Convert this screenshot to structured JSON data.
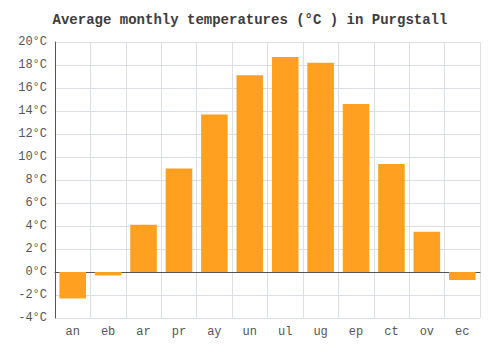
{
  "chart_data": {
    "type": "bar",
    "title": "Average monthly temperatures (°C ) in Purgstall",
    "categories": [
      "an",
      "eb",
      "ar",
      "pr",
      "ay",
      "un",
      "ul",
      "ug",
      "ep",
      "ct",
      "ov",
      "ec"
    ],
    "values": [
      -2.3,
      -0.3,
      4.1,
      9.0,
      13.7,
      17.1,
      18.7,
      18.2,
      14.6,
      9.4,
      3.5,
      -0.7
    ],
    "color": "#FFA020",
    "ylim": [
      -4,
      20
    ],
    "yticks": [
      {
        "value": -4,
        "label": "-4°C"
      },
      {
        "value": -2,
        "label": "-2°C"
      },
      {
        "value": 0,
        "label": "0°C"
      },
      {
        "value": 2,
        "label": "2°C"
      },
      {
        "value": 4,
        "label": "4°C"
      },
      {
        "value": 6,
        "label": "6°C"
      },
      {
        "value": 8,
        "label": "8°C"
      },
      {
        "value": 10,
        "label": "10°C"
      },
      {
        "value": 12,
        "label": "12°C"
      },
      {
        "value": 14,
        "label": "14°C"
      },
      {
        "value": 16,
        "label": "16°C"
      },
      {
        "value": 18,
        "label": "18°C"
      },
      {
        "value": 20,
        "label": "20°C"
      }
    ],
    "grid": true
  }
}
